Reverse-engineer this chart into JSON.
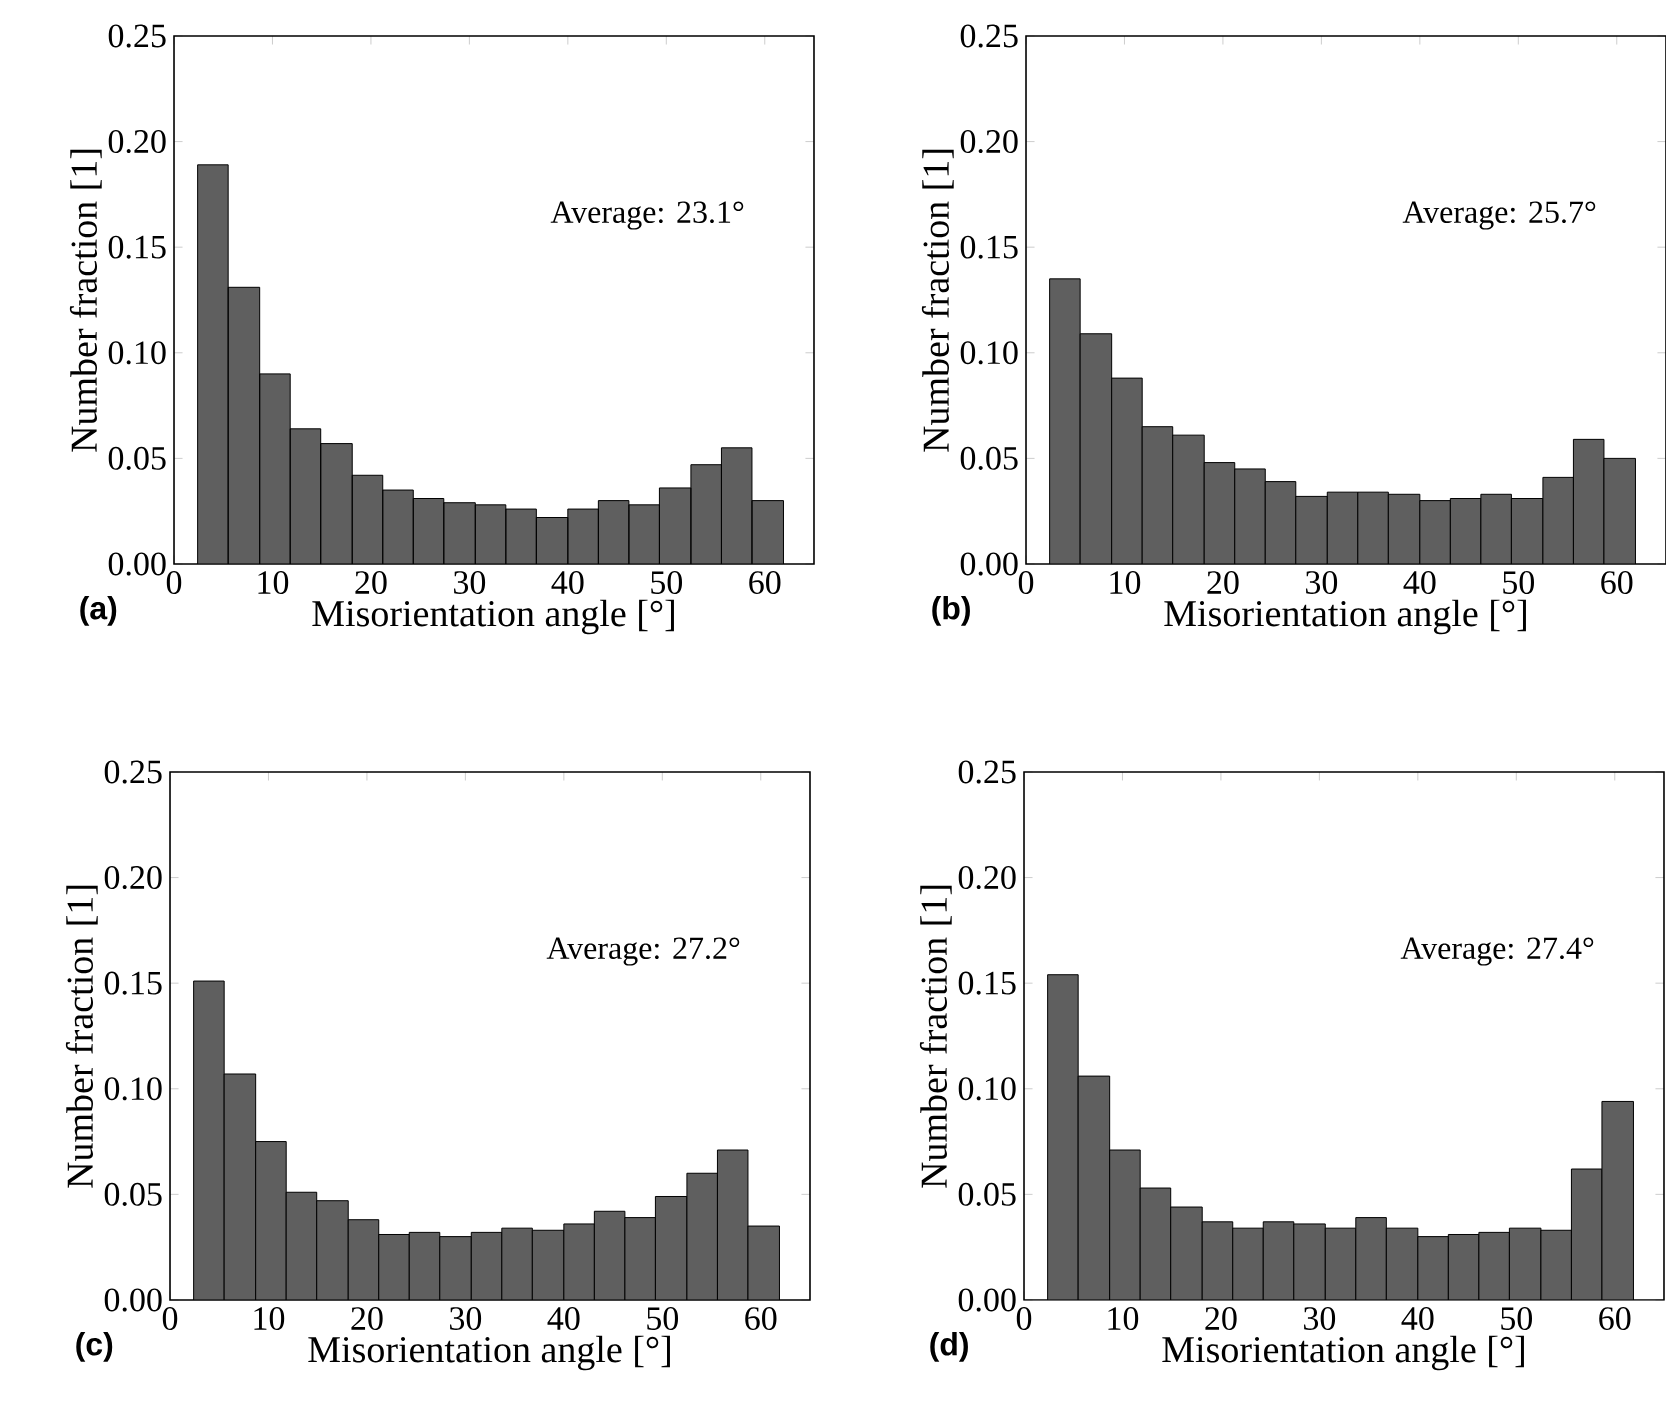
{
  "chart_data": [
    {
      "type": "histogram",
      "title": "(a)",
      "xlabel": "Misorientation angle  [°]",
      "ylabel": "Number fraction  [1]",
      "annotations": [
        "Average: 23.1°"
      ],
      "color": "#5f5f5f",
      "bins": [
        2.4,
        5.5,
        8.7,
        11.8,
        14.9,
        18.1,
        21.2,
        24.3,
        27.4,
        30.6,
        33.7,
        36.8,
        40.0,
        43.1,
        46.2,
        49.3,
        52.5,
        55.6,
        58.7,
        61.9
      ],
      "values": [
        0.189,
        0.131,
        0.09,
        0.064,
        0.057,
        0.042,
        0.035,
        0.031,
        0.029,
        0.028,
        0.026,
        0.022,
        0.026,
        0.03,
        0.028,
        0.036,
        0.047,
        0.055,
        0.03
      ],
      "xlim": [
        0,
        65
      ],
      "xticks": [
        0,
        10,
        20,
        30,
        40,
        50,
        60
      ],
      "ylim": [
        0,
        0.25
      ],
      "yticks": [
        {
          "value": 0,
          "label": "0.00"
        },
        {
          "value": 0.05,
          "label": "0.05"
        },
        {
          "value": 0.1,
          "label": "0.10"
        },
        {
          "value": 0.15,
          "label": "0.15"
        },
        {
          "value": 0.2,
          "label": "0.20"
        },
        {
          "value": 0.25,
          "label": "0.25"
        }
      ]
    },
    {
      "type": "histogram",
      "title": "(b)",
      "xlabel": "Misorientation angle  [°]",
      "ylabel": "Number fraction  [1]",
      "annotations": [
        "Average: 25.7°"
      ],
      "color": "#5f5f5f",
      "bins": [
        2.4,
        5.5,
        8.7,
        11.8,
        14.9,
        18.1,
        21.2,
        24.3,
        27.4,
        30.6,
        33.7,
        36.8,
        40.0,
        43.1,
        46.2,
        49.3,
        52.5,
        55.6,
        58.7,
        61.9
      ],
      "values": [
        0.135,
        0.109,
        0.088,
        0.065,
        0.061,
        0.048,
        0.045,
        0.039,
        0.032,
        0.034,
        0.034,
        0.033,
        0.03,
        0.031,
        0.033,
        0.031,
        0.041,
        0.059,
        0.05
      ],
      "xlim": [
        0,
        65
      ],
      "xticks": [
        0,
        10,
        20,
        30,
        40,
        50,
        60
      ],
      "ylim": [
        0,
        0.25
      ],
      "yticks": [
        {
          "value": 0,
          "label": "0.00"
        },
        {
          "value": 0.05,
          "label": "0.05"
        },
        {
          "value": 0.1,
          "label": "0.10"
        },
        {
          "value": 0.15,
          "label": "0.15"
        },
        {
          "value": 0.2,
          "label": "0.20"
        },
        {
          "value": 0.25,
          "label": "0.25"
        }
      ]
    },
    {
      "type": "histogram",
      "title": "(c)",
      "xlabel": "Misorientation angle  [°]",
      "ylabel": "Number fraction  [1]",
      "annotations": [
        "Average: 27.2°"
      ],
      "color": "#5f5f5f",
      "bins": [
        2.4,
        5.5,
        8.7,
        11.8,
        14.9,
        18.1,
        21.2,
        24.3,
        27.4,
        30.6,
        33.7,
        36.8,
        40.0,
        43.1,
        46.2,
        49.3,
        52.5,
        55.6,
        58.7,
        61.9
      ],
      "values": [
        0.151,
        0.107,
        0.075,
        0.051,
        0.047,
        0.038,
        0.031,
        0.032,
        0.03,
        0.032,
        0.034,
        0.033,
        0.036,
        0.042,
        0.039,
        0.049,
        0.06,
        0.071,
        0.035
      ],
      "xlim": [
        0,
        65
      ],
      "xticks": [
        0,
        10,
        20,
        30,
        40,
        50,
        60
      ],
      "ylim": [
        0,
        0.25
      ],
      "yticks": [
        {
          "value": 0,
          "label": "0.00"
        },
        {
          "value": 0.05,
          "label": "0.05"
        },
        {
          "value": 0.1,
          "label": "0.10"
        },
        {
          "value": 0.15,
          "label": "0.15"
        },
        {
          "value": 0.2,
          "label": "0.20"
        },
        {
          "value": 0.25,
          "label": "0.25"
        }
      ]
    },
    {
      "type": "histogram",
      "title": "(d)",
      "xlabel": "Misorientation angle  [°]",
      "ylabel": "Number fraction  [1]",
      "annotations": [
        "Average: 27.4°"
      ],
      "color": "#5f5f5f",
      "bins": [
        2.4,
        5.5,
        8.7,
        11.8,
        14.9,
        18.1,
        21.2,
        24.3,
        27.4,
        30.6,
        33.7,
        36.8,
        40.0,
        43.1,
        46.2,
        49.3,
        52.5,
        55.6,
        58.7,
        61.9
      ],
      "values": [
        0.154,
        0.106,
        0.071,
        0.053,
        0.044,
        0.037,
        0.034,
        0.037,
        0.036,
        0.034,
        0.039,
        0.034,
        0.03,
        0.031,
        0.032,
        0.034,
        0.033,
        0.062,
        0.094
      ],
      "xlim": [
        0,
        65
      ],
      "xticks": [
        0,
        10,
        20,
        30,
        40,
        50,
        60
      ],
      "ylim": [
        0,
        0.25
      ],
      "yticks": [
        {
          "value": 0,
          "label": "0.00"
        },
        {
          "value": 0.05,
          "label": "0.05"
        },
        {
          "value": 0.1,
          "label": "0.10"
        },
        {
          "value": 0.15,
          "label": "0.15"
        },
        {
          "value": 0.2,
          "label": "0.20"
        },
        {
          "value": 0.25,
          "label": "0.25"
        }
      ]
    }
  ]
}
